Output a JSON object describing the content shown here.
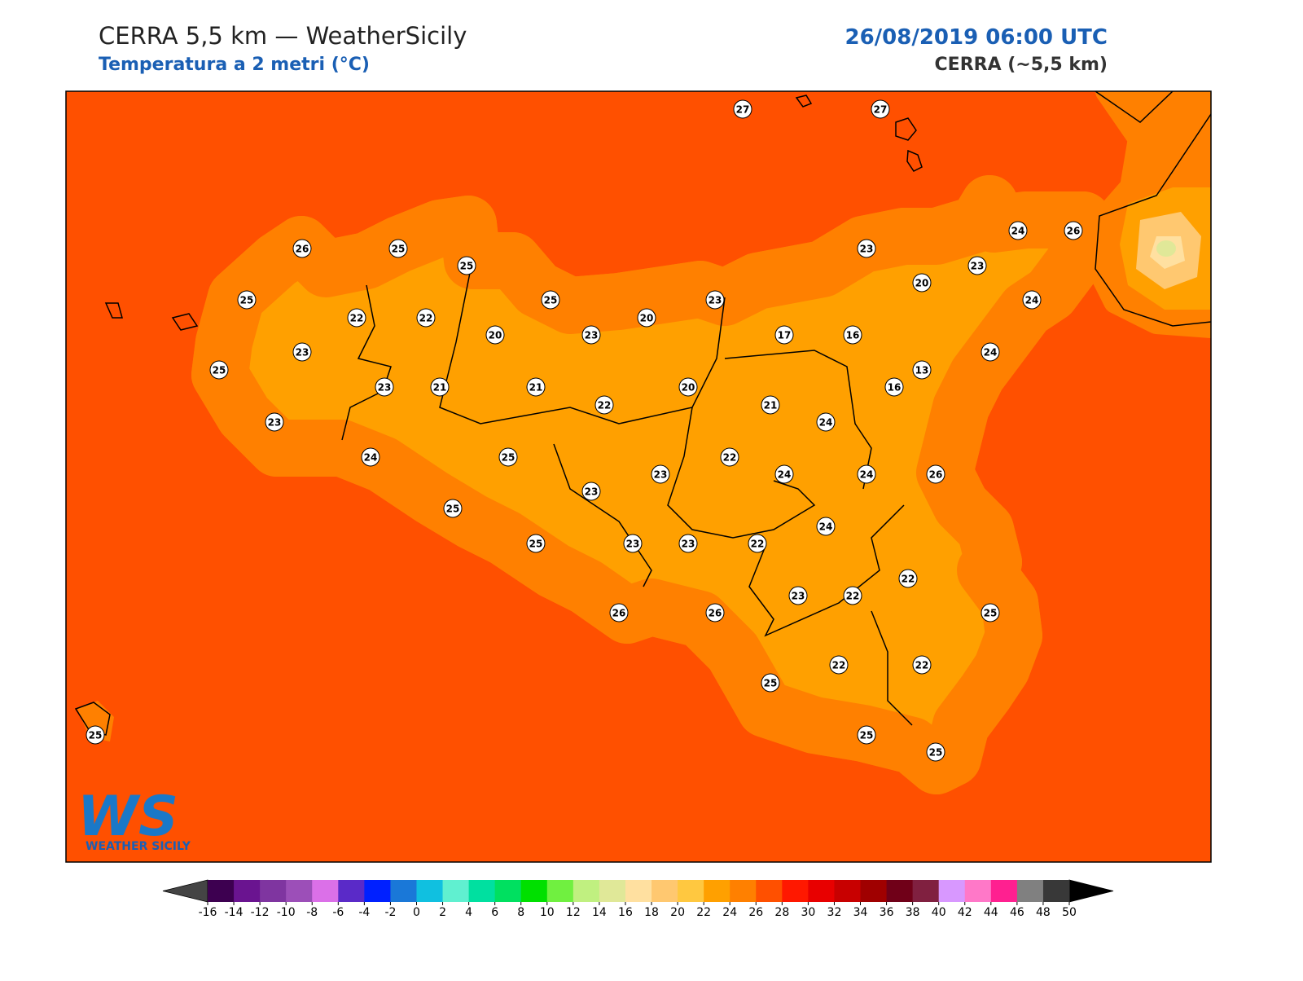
{
  "header": {
    "title": "CERRA 5,5 km — WeatherSicily",
    "subtitle": "Temperatura a 2 metri (°C)",
    "datetime": "26/08/2019 06:00 UTC",
    "model": "CERRA (~5,5 km)"
  },
  "map": {
    "background": "#ff5000",
    "stations": [
      27,
      27,
      26,
      25,
      25,
      25,
      22,
      22,
      20,
      23,
      25,
      23,
      21,
      21,
      25,
      23,
      20,
      23,
      20,
      22,
      23,
      24,
      25,
      25,
      25,
      23,
      23,
      23,
      23,
      22,
      22,
      26,
      26,
      25,
      21,
      17,
      16,
      23,
      20,
      23,
      24,
      26,
      24,
      24,
      13,
      16,
      24,
      24,
      24,
      26,
      24,
      23,
      22,
      22,
      25,
      22,
      22,
      25,
      25,
      25
    ]
  },
  "logo": {
    "letters": "WS",
    "name": "WEATHER SICILY"
  },
  "colorbar": {
    "ticks": [
      -16,
      -14,
      -12,
      -10,
      -8,
      -6,
      -4,
      -2,
      0,
      2,
      4,
      6,
      8,
      10,
      12,
      14,
      16,
      18,
      20,
      22,
      24,
      26,
      28,
      30,
      32,
      34,
      36,
      38,
      40,
      42,
      44,
      46,
      48,
      50
    ],
    "colors": [
      "#3d0050",
      "#6a1490",
      "#7f35a0",
      "#9c4fb8",
      "#db70e8",
      "#5a2ac8",
      "#0020ff",
      "#1a78d8",
      "#10c0e0",
      "#60f0d0",
      "#00e0a0",
      "#00e060",
      "#00e000",
      "#70f040",
      "#c0f080",
      "#e0e898",
      "#ffe0a0",
      "#ffc870",
      "#ffc840",
      "#ffa000",
      "#ff8000",
      "#ff5000",
      "#ff1800",
      "#e80000",
      "#c80000",
      "#a00000",
      "#700018",
      "#802040",
      "#d898ff",
      "#ff78c8",
      "#ff2090",
      "#808080",
      "#383838"
    ],
    "under": "#444444",
    "over": "#000000"
  }
}
